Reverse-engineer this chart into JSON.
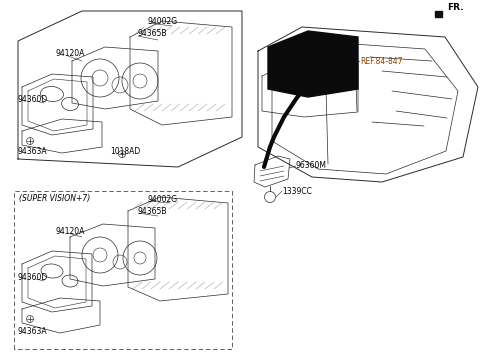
{
  "bg_color": "#ffffff",
  "line_color": "#2a2a2a",
  "label_color": "#000000",
  "ref_color": "#8B4000",
  "figsize": [
    4.8,
    3.59
  ],
  "dpi": 100,
  "fr_text": "FR.",
  "ref_text": "REF.84-847",
  "super_vision_text": "(SUPER VISION+7)"
}
